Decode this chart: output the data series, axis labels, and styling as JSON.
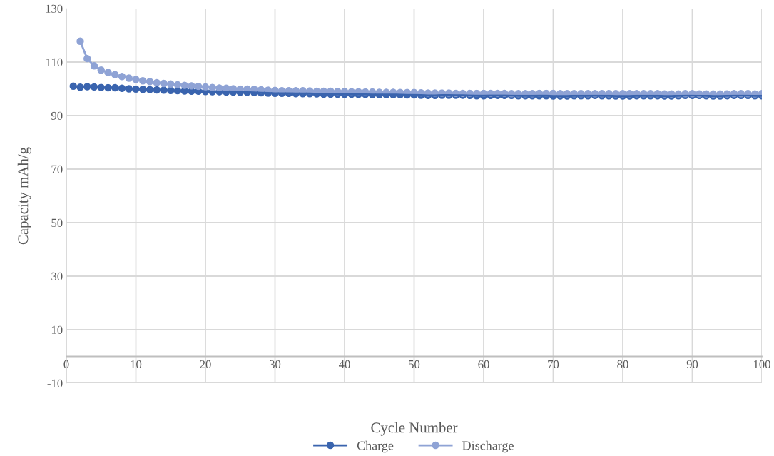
{
  "chart_data": {
    "type": "line",
    "xlabel": "Cycle Number",
    "ylabel": "Capacity mAh/g",
    "x": [
      1,
      2,
      3,
      4,
      5,
      6,
      7,
      8,
      9,
      10,
      11,
      12,
      13,
      14,
      15,
      16,
      17,
      18,
      19,
      20,
      21,
      22,
      23,
      24,
      25,
      26,
      27,
      28,
      29,
      30,
      31,
      32,
      33,
      34,
      35,
      36,
      37,
      38,
      39,
      40,
      41,
      42,
      43,
      44,
      45,
      46,
      47,
      48,
      49,
      50,
      51,
      52,
      53,
      54,
      55,
      56,
      57,
      58,
      59,
      60,
      61,
      62,
      63,
      64,
      65,
      66,
      67,
      68,
      69,
      70,
      71,
      72,
      73,
      74,
      75,
      76,
      77,
      78,
      79,
      80,
      81,
      82,
      83,
      84,
      85,
      86,
      87,
      88,
      89,
      90,
      91,
      92,
      93,
      94,
      95,
      96,
      97,
      98,
      99,
      100
    ],
    "series": [
      {
        "name": "Charge",
        "color": "#3a64ae",
        "values": [
          101,
          100.6,
          100.8,
          100.7,
          100.5,
          100.4,
          100.4,
          100.2,
          100,
          99.9,
          99.8,
          99.7,
          99.6,
          99.5,
          99.4,
          99.3,
          99.2,
          99.1,
          99.1,
          99,
          98.9,
          98.9,
          98.8,
          98.8,
          98.7,
          98.7,
          98.6,
          98.5,
          98.4,
          98.3,
          98.3,
          98.3,
          98.2,
          98.2,
          98.2,
          98.1,
          98,
          98,
          98,
          97.9,
          98,
          97.9,
          97.9,
          97.8,
          97.8,
          97.8,
          97.8,
          97.8,
          97.7,
          97.7,
          97.6,
          97.5,
          97.5,
          97.6,
          97.6,
          97.6,
          97.6,
          97.5,
          97.4,
          97.4,
          97.5,
          97.5,
          97.5,
          97.5,
          97.4,
          97.4,
          97.4,
          97.4,
          97.4,
          97.3,
          97.3,
          97.3,
          97.4,
          97.4,
          97.4,
          97.5,
          97.4,
          97.4,
          97.3,
          97.3,
          97.3,
          97.4,
          97.4,
          97.4,
          97.4,
          97.3,
          97.3,
          97.4,
          97.5,
          97.5,
          97.5,
          97.4,
          97.3,
          97.3,
          97.4,
          97.5,
          97.5,
          97.5,
          97.4,
          97.4
        ]
      },
      {
        "name": "Discharge",
        "color": "#8fa3d5",
        "values": [
          null,
          117.8,
          111.3,
          108.6,
          107,
          106.1,
          105.3,
          104.6,
          104,
          103.5,
          103,
          102.7,
          102.3,
          102,
          101.8,
          101.5,
          101.3,
          101.1,
          100.9,
          100.7,
          100.5,
          100.3,
          100.2,
          100,
          99.9,
          99.9,
          99.8,
          99.6,
          99.5,
          99.4,
          99.3,
          99.3,
          99.3,
          99.3,
          99.2,
          99.1,
          99.1,
          99.1,
          99,
          99,
          98.9,
          98.9,
          98.8,
          98.8,
          98.7,
          98.7,
          98.7,
          98.6,
          98.6,
          98.6,
          98.5,
          98.4,
          98.4,
          98.4,
          98.4,
          98.3,
          98.3,
          98.3,
          98.3,
          98.3,
          98.3,
          98.3,
          98.3,
          98.2,
          98.2,
          98.2,
          98.2,
          98.3,
          98.3,
          98.3,
          98.2,
          98.2,
          98.2,
          98.2,
          98.2,
          98.2,
          98.2,
          98.2,
          98.2,
          98.2,
          98.2,
          98.2,
          98.2,
          98.2,
          98.2,
          98.1,
          98.1,
          98.1,
          98.2,
          98.2,
          98.1,
          98.1,
          98.1,
          98.1,
          98.1,
          98.2,
          98.2,
          98.2,
          98.1,
          98.2
        ]
      }
    ],
    "xlim": [
      0,
      100
    ],
    "xticks": [
      0,
      10,
      20,
      30,
      40,
      50,
      60,
      70,
      80,
      90,
      100
    ],
    "ylim": [
      -10,
      130
    ],
    "yticks": [
      -10,
      10,
      30,
      50,
      70,
      90,
      110,
      130
    ],
    "grid": true,
    "legend": "bottom",
    "marker": "circle",
    "line_style": "solid"
  }
}
